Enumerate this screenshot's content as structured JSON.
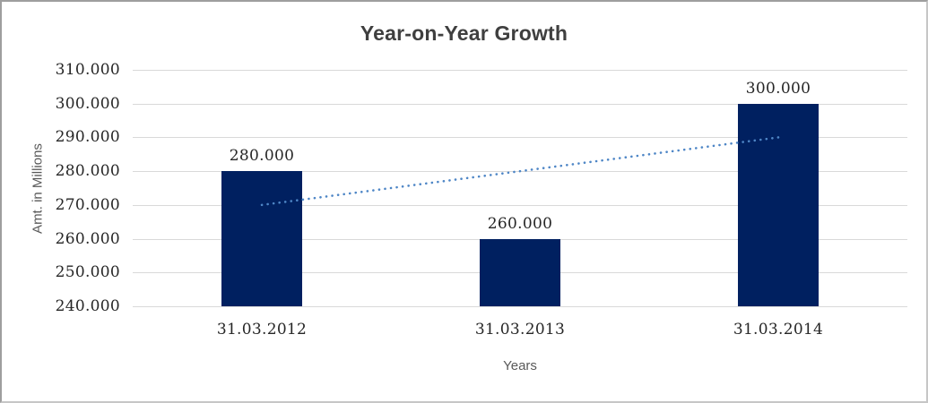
{
  "chart_data": {
    "type": "bar",
    "title": "Year-on-Year Growth",
    "xlabel": "Years",
    "ylabel": "Amt. in Millions",
    "categories": [
      "31.03.2012",
      "31.03.2013",
      "31.03.2014"
    ],
    "values": [
      280000,
      260000,
      300000
    ],
    "value_labels": [
      "280.000",
      "260.000",
      "300.000"
    ],
    "ylim": [
      240000,
      310000
    ],
    "ytick_step": 10000,
    "ytick_labels": [
      "240.000",
      "250.000",
      "260.000",
      "270.000",
      "280.000",
      "290.000",
      "300.000",
      "310.000"
    ],
    "grid": "horizontal-only",
    "legend": "none",
    "trendline": {
      "style": "dotted",
      "start_category": "31.03.2012",
      "start_value": 270000,
      "end_category": "31.03.2014",
      "end_value": 290000
    },
    "colors": {
      "bar": "#002060",
      "trendline": "#4e86c6",
      "gridline": "#d9d9d9",
      "title": "#3f3f3f",
      "axis_title": "#595959",
      "tick_label": "#262626",
      "data_label": "#262626",
      "frame_border": "#c6c6c6",
      "background": "#ffffff"
    }
  }
}
